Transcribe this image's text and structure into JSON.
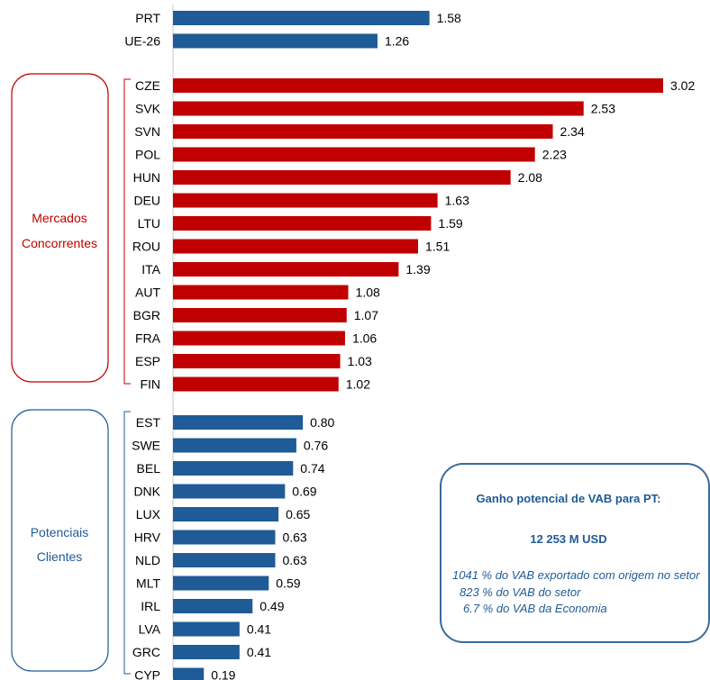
{
  "chart_data": {
    "type": "bar",
    "orientation": "horizontal",
    "xlim": [
      0,
      3.02
    ],
    "grid": false,
    "value_format": "2 decimals",
    "groups": [
      {
        "name": "",
        "color": "#1f5b96",
        "categories": [
          "PRT",
          "UE-26"
        ],
        "values": [
          1.58,
          1.26
        ]
      },
      {
        "name": "Mercados Concorrentes",
        "color": "#c00000",
        "categories": [
          "CZE",
          "SVK",
          "SVN",
          "POL",
          "HUN",
          "DEU",
          "LTU",
          "ROU",
          "ITA",
          "AUT",
          "BGR",
          "FRA",
          "ESP",
          "FIN"
        ],
        "values": [
          3.02,
          2.53,
          2.34,
          2.23,
          2.08,
          1.63,
          1.59,
          1.51,
          1.39,
          1.08,
          1.07,
          1.06,
          1.03,
          1.02
        ]
      },
      {
        "name": "Potenciais Clientes",
        "color": "#1f5b96",
        "categories": [
          "EST",
          "SWE",
          "BEL",
          "DNK",
          "LUX",
          "HRV",
          "NLD",
          "MLT",
          "IRL",
          "LVA",
          "GRC",
          "CYP"
        ],
        "values": [
          0.8,
          0.76,
          0.74,
          0.69,
          0.65,
          0.63,
          0.63,
          0.59,
          0.49,
          0.41,
          0.41,
          0.19
        ]
      }
    ],
    "group_labels": {
      "competitors": [
        "Mercados",
        "Concorrentes"
      ],
      "clients": [
        "Potenciais",
        "Clientes"
      ]
    }
  },
  "info_box": {
    "title": "Ganho potencial de VAB para PT:",
    "amount": "12 253 M USD",
    "line1": "1041 % do VAB exportado com origem no setor",
    "line2": "823 % do VAB do setor",
    "line3": "6.7 % do VAB da Economia"
  },
  "colors": {
    "blue": "#1f5b96",
    "red": "#c00000",
    "axis": "#c8c8c8"
  }
}
